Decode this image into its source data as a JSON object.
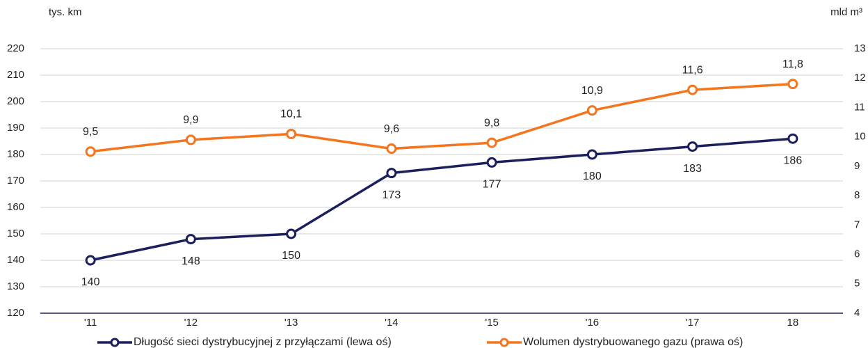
{
  "chart_data": {
    "type": "line",
    "y_label": "tys. km",
    "y2_label": "mld m³",
    "categories": [
      "'11",
      "'12",
      "'13",
      "'14",
      "'15",
      "'16",
      "'17",
      "18"
    ],
    "series": [
      {
        "name": "Długość sieci dystrybucyjnej z przyłączami (lewa oś)",
        "color": "#1b1f5c",
        "values": [
          140,
          148,
          150,
          173,
          177,
          180,
          183,
          186
        ]
      },
      {
        "name": "Wolumen dystrybuowanego gazu (prawa oś)",
        "color": "#f5751f",
        "axis": "y2",
        "values": [
          9.5,
          9.9,
          10.1,
          9.6,
          9.8,
          10.9,
          11.6,
          11.8
        ],
        "value_labels": [
          "9,5",
          "9,9",
          "10,1",
          "9,6",
          "9,8",
          "10,9",
          "11,6",
          "11,8"
        ]
      }
    ],
    "ylim": [
      120,
      220
    ],
    "yticks": [
      120,
      130,
      140,
      150,
      160,
      170,
      180,
      190,
      200,
      210,
      220
    ],
    "y2lim": [
      4,
      13
    ],
    "y2ticks": [
      4,
      5,
      6,
      7,
      8,
      9,
      10,
      11,
      12,
      13
    ],
    "grid": true
  }
}
